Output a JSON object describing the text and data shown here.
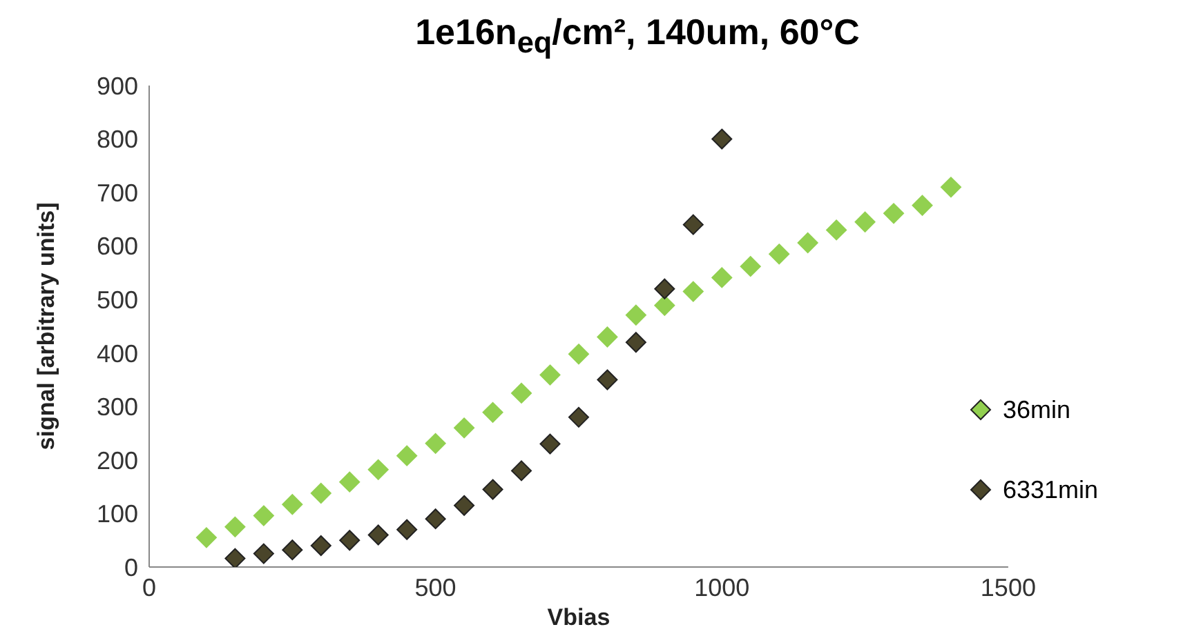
{
  "chart_data": {
    "type": "scatter",
    "title": "1e16n$_{eq}$/cm², 140um,  60°C",
    "xlabel": "Vbias",
    "ylabel": "signal [arbitrary units]",
    "xlim": [
      0,
      1500
    ],
    "xticks": [
      0,
      500,
      1000,
      1500
    ],
    "ylim": [
      0,
      900
    ],
    "yticks": [
      0,
      100,
      200,
      300,
      400,
      500,
      600,
      700,
      800,
      900
    ],
    "marker": "diamond",
    "grid": false,
    "legend": "right",
    "series": [
      {
        "name": "36min",
        "color": "#92d050",
        "x": [
          100,
          150,
          200,
          250,
          300,
          350,
          400,
          450,
          500,
          550,
          600,
          650,
          700,
          750,
          800,
          850,
          900,
          950,
          1000,
          1050,
          1100,
          1150,
          1200,
          1250,
          1300,
          1350,
          1400
        ],
        "values": [
          55,
          75,
          96,
          117,
          138,
          159,
          182,
          208,
          231,
          260,
          289,
          325,
          359,
          398,
          430,
          471,
          489,
          515,
          541,
          562,
          585,
          606,
          630,
          645,
          661,
          676,
          710
        ]
      },
      {
        "name": "6331min",
        "color": "#4a452a",
        "x": [
          150,
          200,
          250,
          300,
          350,
          400,
          450,
          500,
          550,
          600,
          650,
          700,
          750,
          800,
          850,
          900,
          950,
          1000
        ],
        "values": [
          16,
          25,
          32,
          40,
          50,
          60,
          70,
          90,
          115,
          145,
          180,
          230,
          280,
          350,
          420,
          520,
          640,
          800
        ]
      }
    ]
  }
}
